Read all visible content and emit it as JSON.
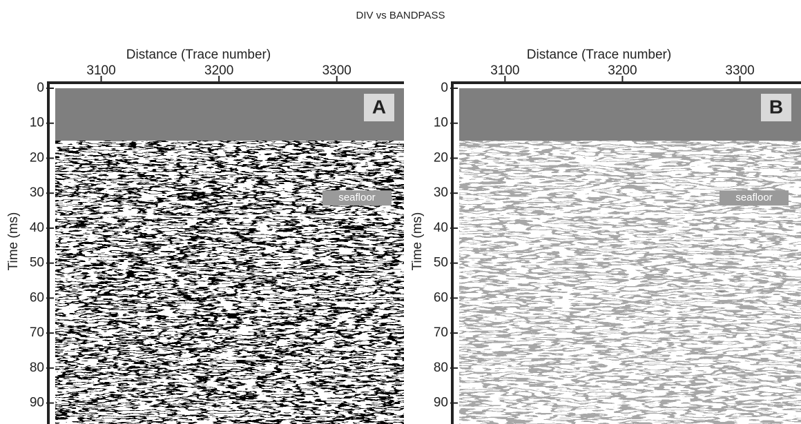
{
  "title": "DIV vs BANDPASS",
  "chart_data": [
    {
      "type": "image",
      "panel_label": "A",
      "x_label": "Distance (Trace number)",
      "y_label": "Time (ms)",
      "xlim": [
        3061,
        3357
      ],
      "xticks": [
        3100,
        3200,
        3300
      ],
      "ylim": [
        0,
        96
      ],
      "yticks": [
        0,
        10,
        20,
        30,
        40,
        50,
        60,
        70,
        80,
        90
      ],
      "y_inverted": true,
      "muted_until": 15,
      "annotations": [
        {
          "text": "seafloor",
          "y": 36.5
        }
      ]
    },
    {
      "type": "image",
      "panel_label": "B",
      "x_label": "Distance (Trace number)",
      "y_label": "Time (ms)",
      "xlim": [
        3061,
        3352
      ],
      "xticks": [
        3100,
        3200,
        3300
      ],
      "ylim": [
        0,
        96
      ],
      "yticks": [
        0,
        10,
        20,
        30,
        40,
        50,
        60,
        70,
        80,
        90
      ],
      "y_inverted": true,
      "muted_until": 15,
      "annotations": [
        {
          "text": "seafloor",
          "y": 36.5
        }
      ]
    }
  ]
}
